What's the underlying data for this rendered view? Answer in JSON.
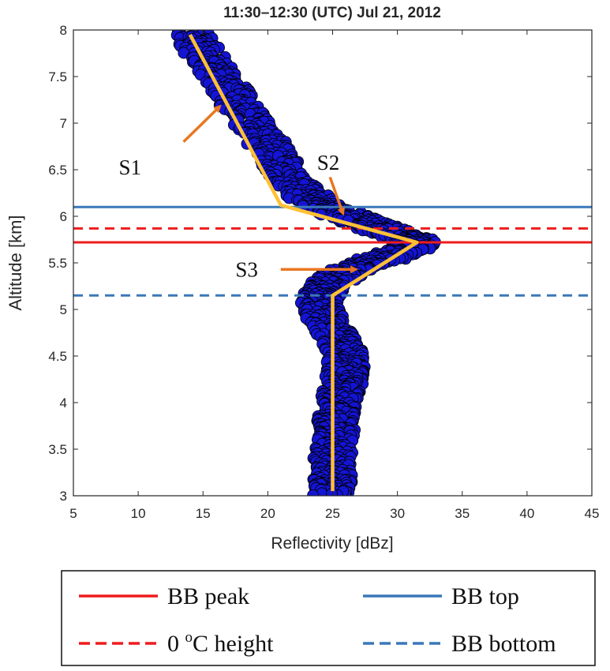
{
  "chart_data": {
    "type": "scatter",
    "title": "11:30–12:30 (UTC) Jul 21, 2012",
    "xlabel": "Reflectivity [dBz]",
    "ylabel": "Altitude [km]",
    "xlim": [
      5,
      45
    ],
    "ylim": [
      3,
      8
    ],
    "xticks": [
      "5",
      "10",
      "15",
      "20",
      "25",
      "30",
      "35",
      "40",
      "45"
    ],
    "yticks": [
      "3",
      "3.5",
      "4",
      "4.5",
      "5",
      "5.5",
      "6",
      "6.5",
      "7",
      "7.5",
      "8"
    ],
    "grid": false,
    "profile_centerline": [
      [
        14.0,
        7.98
      ],
      [
        14.8,
        7.8
      ],
      [
        15.8,
        7.6
      ],
      [
        16.8,
        7.4
      ],
      [
        17.8,
        7.2
      ],
      [
        18.8,
        7.0
      ],
      [
        19.8,
        6.8
      ],
      [
        20.8,
        6.6
      ],
      [
        21.8,
        6.4
      ],
      [
        22.8,
        6.25
      ],
      [
        24.0,
        6.12
      ],
      [
        25.5,
        6.03
      ],
      [
        27.0,
        5.96
      ],
      [
        28.5,
        5.88
      ],
      [
        30.0,
        5.8
      ],
      [
        31.2,
        5.74
      ],
      [
        31.5,
        5.7
      ],
      [
        30.5,
        5.62
      ],
      [
        28.5,
        5.53
      ],
      [
        27.0,
        5.45
      ],
      [
        25.5,
        5.36
      ],
      [
        24.5,
        5.25
      ],
      [
        24.2,
        5.15
      ],
      [
        24.0,
        5.05
      ],
      [
        24.2,
        4.95
      ],
      [
        24.8,
        4.8
      ],
      [
        25.5,
        4.65
      ],
      [
        26.0,
        4.5
      ],
      [
        26.0,
        4.35
      ],
      [
        25.8,
        4.2
      ],
      [
        25.5,
        4.05
      ],
      [
        25.3,
        3.9
      ],
      [
        25.3,
        3.75
      ],
      [
        25.2,
        3.6
      ],
      [
        25.0,
        3.45
      ],
      [
        25.0,
        3.3
      ],
      [
        25.0,
        3.15
      ],
      [
        24.8,
        3.02
      ]
    ],
    "profile_spread": 1.5,
    "series_colors": {
      "points": "#1414d4",
      "point_edge": "#000000",
      "fit": "#ffc036"
    },
    "fit_lines": {
      "color": "#ffc036",
      "vertices": [
        [
          14.0,
          7.95
        ],
        [
          21.0,
          6.12
        ],
        [
          31.5,
          5.72
        ],
        [
          25.0,
          5.15
        ],
        [
          25.0,
          3.05
        ]
      ]
    },
    "horizontal_lines": [
      {
        "name": "BB top",
        "y": 6.1,
        "color": "#3a78b9",
        "style": "solid"
      },
      {
        "name": "0 oC height",
        "y": 5.87,
        "color": "#ee1c1c",
        "style": "dashed"
      },
      {
        "name": "BB peak",
        "y": 5.72,
        "color": "#ee1c1c",
        "style": "solid"
      },
      {
        "name": "BB bottom",
        "y": 5.15,
        "color": "#3a78b9",
        "style": "dashed"
      }
    ],
    "annotations": [
      {
        "label": "S1",
        "text_x": 8.5,
        "text_y": 6.45,
        "arrow_from": [
          13.5,
          6.8
        ],
        "arrow_to": [
          16.3,
          7.18
        ]
      },
      {
        "label": "S2",
        "text_x": 23.8,
        "text_y": 6.5,
        "arrow_from": [
          24.8,
          6.42
        ],
        "arrow_to": [
          25.8,
          6.03
        ]
      },
      {
        "label": "S3",
        "text_x": 17.5,
        "text_y": 5.35,
        "arrow_from": [
          21.0,
          5.43
        ],
        "arrow_to": [
          26.8,
          5.43
        ]
      }
    ],
    "arrow_color": "#e87722",
    "legend": {
      "placement": "bottom",
      "entries": [
        {
          "label": "BB peak",
          "color": "#ee1c1c",
          "style": "solid"
        },
        {
          "label": "BB top",
          "color": "#3a78b9",
          "style": "solid"
        },
        {
          "label": "0 ",
          "sup": "o",
          "suffix": "C height",
          "color": "#ee1c1c",
          "style": "dashed"
        },
        {
          "label": "BB bottom",
          "color": "#3a78b9",
          "style": "dashed"
        }
      ]
    }
  }
}
